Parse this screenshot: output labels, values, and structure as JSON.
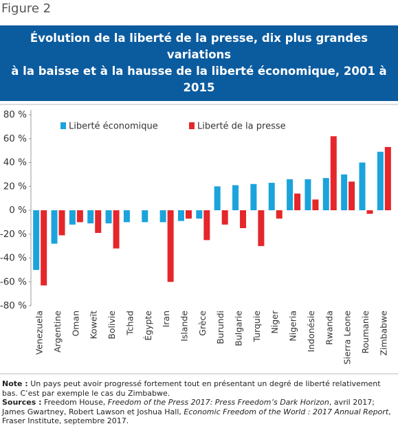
{
  "figure_label": "Figure 2",
  "chart_data": {
    "type": "bar",
    "title_lines": [
      "Évolution de la liberté de la presse, dix plus grandes variations",
      "à la baisse et à la hausse de la liberté économique, 2001 à 2015"
    ],
    "categories": [
      "Venezuela",
      "Argentine",
      "Oman",
      "Koweït",
      "Bolivie",
      "Tchad",
      "Égypte",
      "Iran",
      "Islande",
      "Grèce",
      "Burundi",
      "Bulgarie",
      "Turquie",
      "Niger",
      "Nigeria",
      "Indonésie",
      "Rwanda",
      "Sierra Leone",
      "Roumanie",
      "Zimbabwe"
    ],
    "series": [
      {
        "name": "Liberté économique",
        "color": "#1ba3dc",
        "values": [
          -50,
          -28,
          -12,
          -11,
          -11,
          -10,
          -10,
          -10,
          -9,
          -7,
          20,
          21,
          22,
          23,
          26,
          26,
          27,
          30,
          40,
          49
        ]
      },
      {
        "name": "Liberté de la presse",
        "color": "#e5262b",
        "values": [
          -63,
          -21,
          -10,
          -19,
          -32,
          0,
          0,
          -60,
          -7,
          -25,
          -12,
          -15,
          -30,
          -7,
          14,
          9,
          62,
          24,
          -3,
          53
        ]
      }
    ],
    "ylim": [
      -80,
      80
    ],
    "yticks": [
      {
        "value": -80,
        "label": "-80 %"
      },
      {
        "value": -60,
        "label": "-60 %"
      },
      {
        "value": -40,
        "label": "-40 %"
      },
      {
        "value": -20,
        "label": "-20 %"
      },
      {
        "value": 0,
        "label": "0 %"
      },
      {
        "value": 20,
        "label": "20 %"
      },
      {
        "value": 40,
        "label": "40 %"
      },
      {
        "value": 60,
        "label": "60 %"
      },
      {
        "value": 80,
        "label": "80 %"
      }
    ],
    "legend_position": "top-left"
  },
  "notes": {
    "note_label": "Note :",
    "note": "Un pays peut avoir progressé fortement tout en présentant un degré de liberté relativement bas. C’est par exemple le cas du Zimbabwe.",
    "sources_label": "Sources :",
    "sources": [
      "Freedom House, ",
      "Freedom of the Press 2017: Press Freedom’s Dark Horizon",
      ", avril 2017; James Gwartney, Robert Lawson et Joshua Hall, ",
      "Economic Freedom of the World : 2017 Annual Report",
      ", Fraser Institute, septembre 2017."
    ]
  }
}
